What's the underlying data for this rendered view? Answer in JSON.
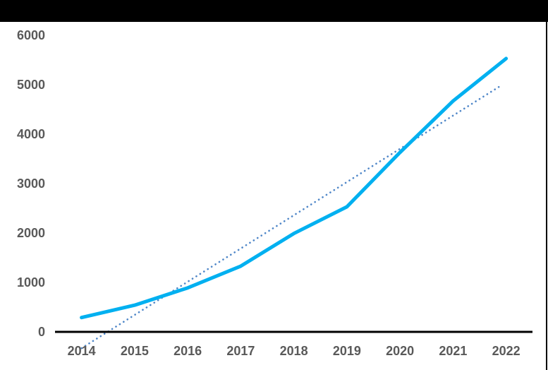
{
  "window": {
    "top_bar_color": "#000000",
    "right_border_color": "#000000",
    "background_color": "#ffffff"
  },
  "chart_data": {
    "type": "line",
    "title": "",
    "xlabel": "",
    "ylabel": "",
    "categories": [
      "2014",
      "2015",
      "2016",
      "2017",
      "2018",
      "2019",
      "2020",
      "2021",
      "2022"
    ],
    "series": [
      {
        "name": "main-series",
        "color": "#00B0F0",
        "values": [
          290,
          540,
          890,
          1330,
          1990,
          2530,
          3630,
          4670,
          5530
        ]
      }
    ],
    "trendline": {
      "name": "linear-trendline",
      "style": "dotted",
      "color": "#4E86C8",
      "start_value": -330,
      "end_value": 4985
    },
    "y_ticks": [
      {
        "label": "0",
        "value": 0
      },
      {
        "label": "1000",
        "value": 1000
      },
      {
        "label": "2000",
        "value": 2000
      },
      {
        "label": "3000",
        "value": 3000
      },
      {
        "label": "4000",
        "value": 4000
      },
      {
        "label": "5000",
        "value": 5000
      },
      {
        "label": "6000",
        "value": 6000
      }
    ],
    "ylim": [
      0,
      6000
    ],
    "grid": "off",
    "legend": "none",
    "tick_label_color": "#595959",
    "axis_color": "#000000"
  }
}
